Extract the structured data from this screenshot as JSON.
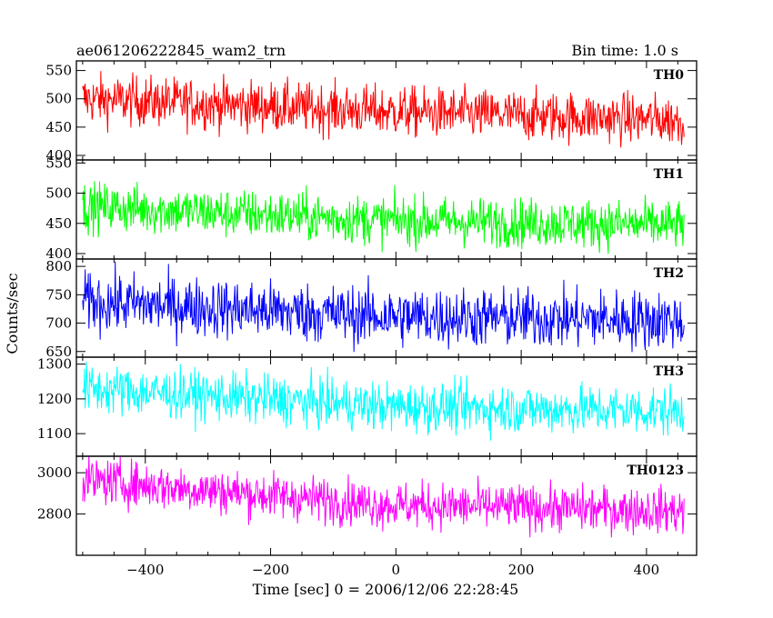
{
  "header": {
    "title": "ae061206222845_wam2_trn",
    "bin_time": "Bin time: 1.0 s"
  },
  "chart_data": {
    "type": "line",
    "xlabel": "Time [sec] 0 = 2006/12/06 22:28:45",
    "ylabel": "Counts/sec",
    "xlim": [
      -510,
      480
    ],
    "x_range": [
      -500,
      460
    ],
    "bin_time_s": 1.0,
    "xticks": [
      -400,
      -200,
      0,
      200,
      400
    ],
    "panels": [
      {
        "name": "TH0",
        "color": "#ff0000",
        "ylim": [
          392,
          567
        ],
        "yticks": [
          400,
          450,
          500,
          550
        ],
        "trend": [
          500,
          478,
          462
        ],
        "noise": 22
      },
      {
        "name": "TH1",
        "color": "#00ff00",
        "ylim": [
          391,
          555
        ],
        "yticks": [
          400,
          450,
          500,
          550
        ],
        "trend": [
          478,
          455,
          447
        ],
        "noise": 20
      },
      {
        "name": "TH2",
        "color": "#0000ff",
        "ylim": [
          640,
          813
        ],
        "yticks": [
          650,
          700,
          750,
          800
        ],
        "trend": [
          738,
          712,
          705
        ],
        "noise": 26
      },
      {
        "name": "TH3",
        "color": "#00ffff",
        "ylim": [
          1035,
          1320
        ],
        "yticks": [
          1100,
          1200,
          1300
        ],
        "trend": [
          1230,
          1178,
          1165
        ],
        "noise": 35
      },
      {
        "name": "TH0123",
        "color": "#ff00ff",
        "ylim": [
          2600,
          3080
        ],
        "yticks": [
          2800,
          3000
        ],
        "trend": [
          2965,
          2845,
          2815
        ],
        "noise": 55
      }
    ]
  }
}
